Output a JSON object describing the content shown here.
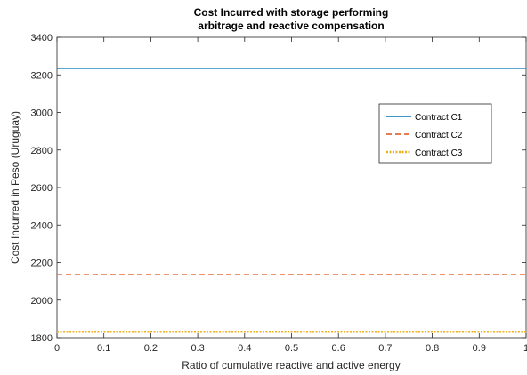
{
  "chart_data": {
    "type": "line",
    "title": [
      "Cost Incurred with storage performing",
      "arbitrage and reactive compensation"
    ],
    "xlabel": "Ratio of cumulative reactive and active energy",
    "ylabel": "Cost Incurred in Peso (Uruguay)",
    "xlim": [
      0,
      1
    ],
    "ylim": [
      1800,
      3400
    ],
    "xticks": [
      0,
      0.1,
      0.2,
      0.3,
      0.4,
      0.5,
      0.6,
      0.7,
      0.8,
      0.9,
      1
    ],
    "xtick_labels": [
      "0",
      "0.1",
      "0.2",
      "0.3",
      "0.4",
      "0.5",
      "0.6",
      "0.7",
      "0.8",
      "0.9",
      "1"
    ],
    "yticks": [
      1800,
      2000,
      2200,
      2400,
      2600,
      2800,
      3000,
      3200,
      3400
    ],
    "ytick_labels": [
      "1800",
      "2000",
      "2200",
      "2400",
      "2600",
      "2800",
      "3000",
      "3200",
      "3400"
    ],
    "grid": false,
    "legend_position": "upper-right",
    "series": [
      {
        "name": "Contract C1",
        "x": [
          0,
          1
        ],
        "y": [
          3235,
          3235
        ],
        "color": "#0072BD",
        "style": "solid"
      },
      {
        "name": "Contract C2",
        "x": [
          0,
          1
        ],
        "y": [
          2135,
          2135
        ],
        "color": "#D95319",
        "style": "dashed"
      },
      {
        "name": "Contract C3",
        "x": [
          0,
          1
        ],
        "y": [
          1832,
          1832
        ],
        "color": "#EDB120",
        "style": "dotted"
      }
    ]
  }
}
